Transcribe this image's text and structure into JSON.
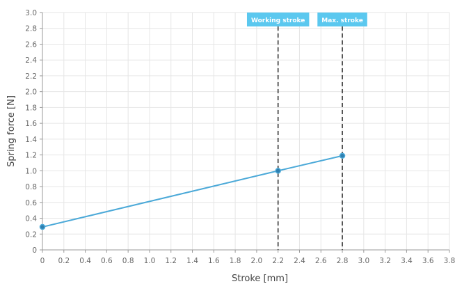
{
  "chart_data": {
    "type": "line",
    "xlabel": "Stroke [mm]",
    "ylabel": "Spring force [N]",
    "xlim": [
      0,
      3.8
    ],
    "ylim": [
      0,
      3.0
    ],
    "x_ticks": [
      "0",
      "0.2",
      "0.4",
      "0.6",
      "0.8",
      "1.0",
      "1.2",
      "1.4",
      "1.6",
      "1.8",
      "2.0",
      "2.2",
      "2.4",
      "2.6",
      "2.8",
      "3.0",
      "3.2",
      "3.4",
      "3.6",
      "3.8"
    ],
    "y_ticks": [
      "0",
      "0.2",
      "0.4",
      "0.6",
      "0.8",
      "1.0",
      "1.2",
      "1.4",
      "1.6",
      "1.8",
      "2.0",
      "2.2",
      "2.4",
      "2.6",
      "2.8",
      "3.0"
    ],
    "grid": true,
    "legend": false,
    "series": [
      {
        "color": "#4ba9d8",
        "points": [
          {
            "x": 0,
            "y": 0.29
          },
          {
            "x": 2.2,
            "y": 1.0
          },
          {
            "x": 2.8,
            "y": 1.19
          }
        ]
      }
    ],
    "annotations": [
      {
        "x": 2.2,
        "label": "Working stroke",
        "line_style": "dashed"
      },
      {
        "x": 2.8,
        "label": "Max. stroke",
        "line_style": "dashed"
      }
    ],
    "colors": {
      "series": "#4ba9d8",
      "marker": "#2e7fb0",
      "annotation_box": "#5bc8ef",
      "annotation_line": "#333333",
      "grid": "#e6e6e6",
      "axis": "#999999"
    }
  }
}
